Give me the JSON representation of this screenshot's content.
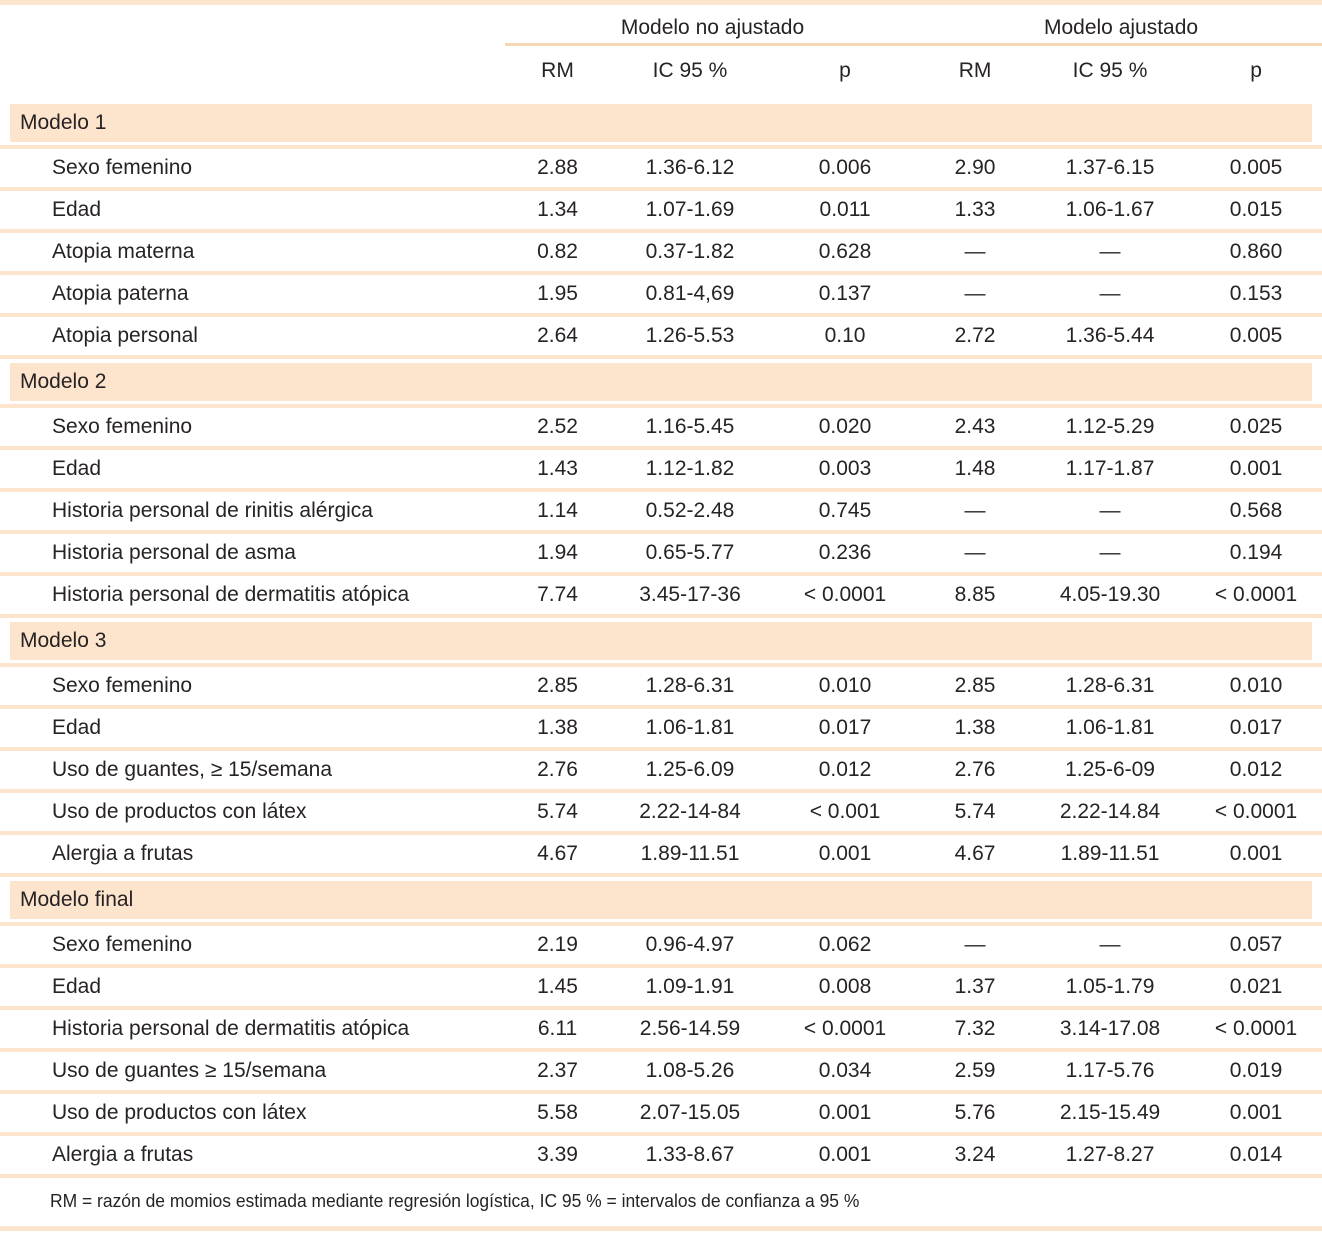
{
  "colors": {
    "band_peach": "#fce4cd",
    "header_rule": "#f6d7b5",
    "text": "#272324"
  },
  "table": {
    "column_groups": [
      "Modelo no ajustado",
      "Modelo ajustado"
    ],
    "sub_headers": [
      "RM",
      "IC 95 %",
      "p",
      "RM",
      "IC 95 %",
      "p"
    ],
    "sections": [
      {
        "title": "Modelo 1",
        "rows": [
          {
            "label": "Sexo femenino",
            "cells": [
              "2.88",
              "1.36-6.12",
              "0.006",
              "2.90",
              "1.37-6.15",
              "0.005"
            ]
          },
          {
            "label": "Edad",
            "cells": [
              "1.34",
              "1.07-1.69",
              "0.011",
              "1.33",
              "1.06-1.67",
              "0.015"
            ]
          },
          {
            "label": "Atopia materna",
            "cells": [
              "0.82",
              "0.37-1.82",
              "0.628",
              "—",
              "—",
              "0.860"
            ]
          },
          {
            "label": "Atopia paterna",
            "cells": [
              "1.95",
              "0.81-4,69",
              "0.137",
              "—",
              "—",
              "0.153"
            ]
          },
          {
            "label": "Atopia personal",
            "cells": [
              "2.64",
              "1.26-5.53",
              "0.10",
              "2.72",
              "1.36-5.44",
              "0.005"
            ]
          }
        ]
      },
      {
        "title": "Modelo 2",
        "rows": [
          {
            "label": "Sexo femenino",
            "cells": [
              "2.52",
              "1.16-5.45",
              "0.020",
              "2.43",
              "1.12-5.29",
              "0.025"
            ]
          },
          {
            "label": "Edad",
            "cells": [
              "1.43",
              "1.12-1.82",
              "0.003",
              "1.48",
              "1.17-1.87",
              "0.001"
            ]
          },
          {
            "label": "Historia personal de rinitis alérgica",
            "cells": [
              "1.14",
              "0.52-2.48",
              "0.745",
              "—",
              "—",
              "0.568"
            ]
          },
          {
            "label": "Historia personal de asma",
            "cells": [
              "1.94",
              "0.65-5.77",
              "0.236",
              "—",
              "—",
              "0.194"
            ]
          },
          {
            "label": "Historia personal de dermatitis atópica",
            "cells": [
              "7.74",
              "3.45-17-36",
              "< 0.0001",
              "8.85",
              "4.05-19.30",
              "< 0.0001"
            ]
          }
        ]
      },
      {
        "title": "Modelo 3",
        "rows": [
          {
            "label": "Sexo femenino",
            "cells": [
              "2.85",
              "1.28-6.31",
              "0.010",
              "2.85",
              "1.28-6.31",
              "0.010"
            ]
          },
          {
            "label": "Edad",
            "cells": [
              "1.38",
              "1.06-1.81",
              "0.017",
              "1.38",
              "1.06-1.81",
              "0.017"
            ]
          },
          {
            "label": "Uso de guantes, ≥ 15/semana",
            "cells": [
              "2.76",
              "1.25-6.09",
              "0.012",
              "2.76",
              "1.25-6-09",
              "0.012"
            ]
          },
          {
            "label": "Uso de productos con látex",
            "cells": [
              "5.74",
              "2.22-14-84",
              "< 0.001",
              "5.74",
              "2.22-14.84",
              "< 0.0001"
            ]
          },
          {
            "label": "Alergia a frutas",
            "cells": [
              "4.67",
              "1.89-11.51",
              "0.001",
              "4.67",
              "1.89-11.51",
              "0.001"
            ]
          }
        ]
      },
      {
        "title": "Modelo final",
        "rows": [
          {
            "label": "Sexo femenino",
            "cells": [
              "2.19",
              "0.96-4.97",
              "0.062",
              "—",
              "—",
              "0.057"
            ]
          },
          {
            "label": "Edad",
            "cells": [
              "1.45",
              "1.09-1.91",
              "0.008",
              "1.37",
              "1.05-1.79",
              "0.021"
            ]
          },
          {
            "label": "Historia personal de dermatitis atópica",
            "cells": [
              "6.11",
              "2.56-14.59",
              "< 0.0001",
              "7.32",
              "3.14-17.08",
              "< 0.0001"
            ]
          },
          {
            "label": "Uso de guantes ≥ 15/semana",
            "cells": [
              "2.37",
              "1.08-5.26",
              "0.034",
              "2.59",
              "1.17-5.76",
              "0.019"
            ]
          },
          {
            "label": "Uso de productos con látex",
            "cells": [
              "5.58",
              "2.07-15.05",
              "0.001",
              "5.76",
              "2.15-15.49",
              "0.001"
            ]
          },
          {
            "label": "Alergia a frutas",
            "cells": [
              "3.39",
              "1.33-8.67",
              "0.001",
              "3.24",
              "1.27-8.27",
              "0.014"
            ]
          }
        ]
      }
    ],
    "footnote": "RM = razón de momios estimada mediante regresión logística, IC 95 % = intervalos de confianza a 95 %"
  }
}
